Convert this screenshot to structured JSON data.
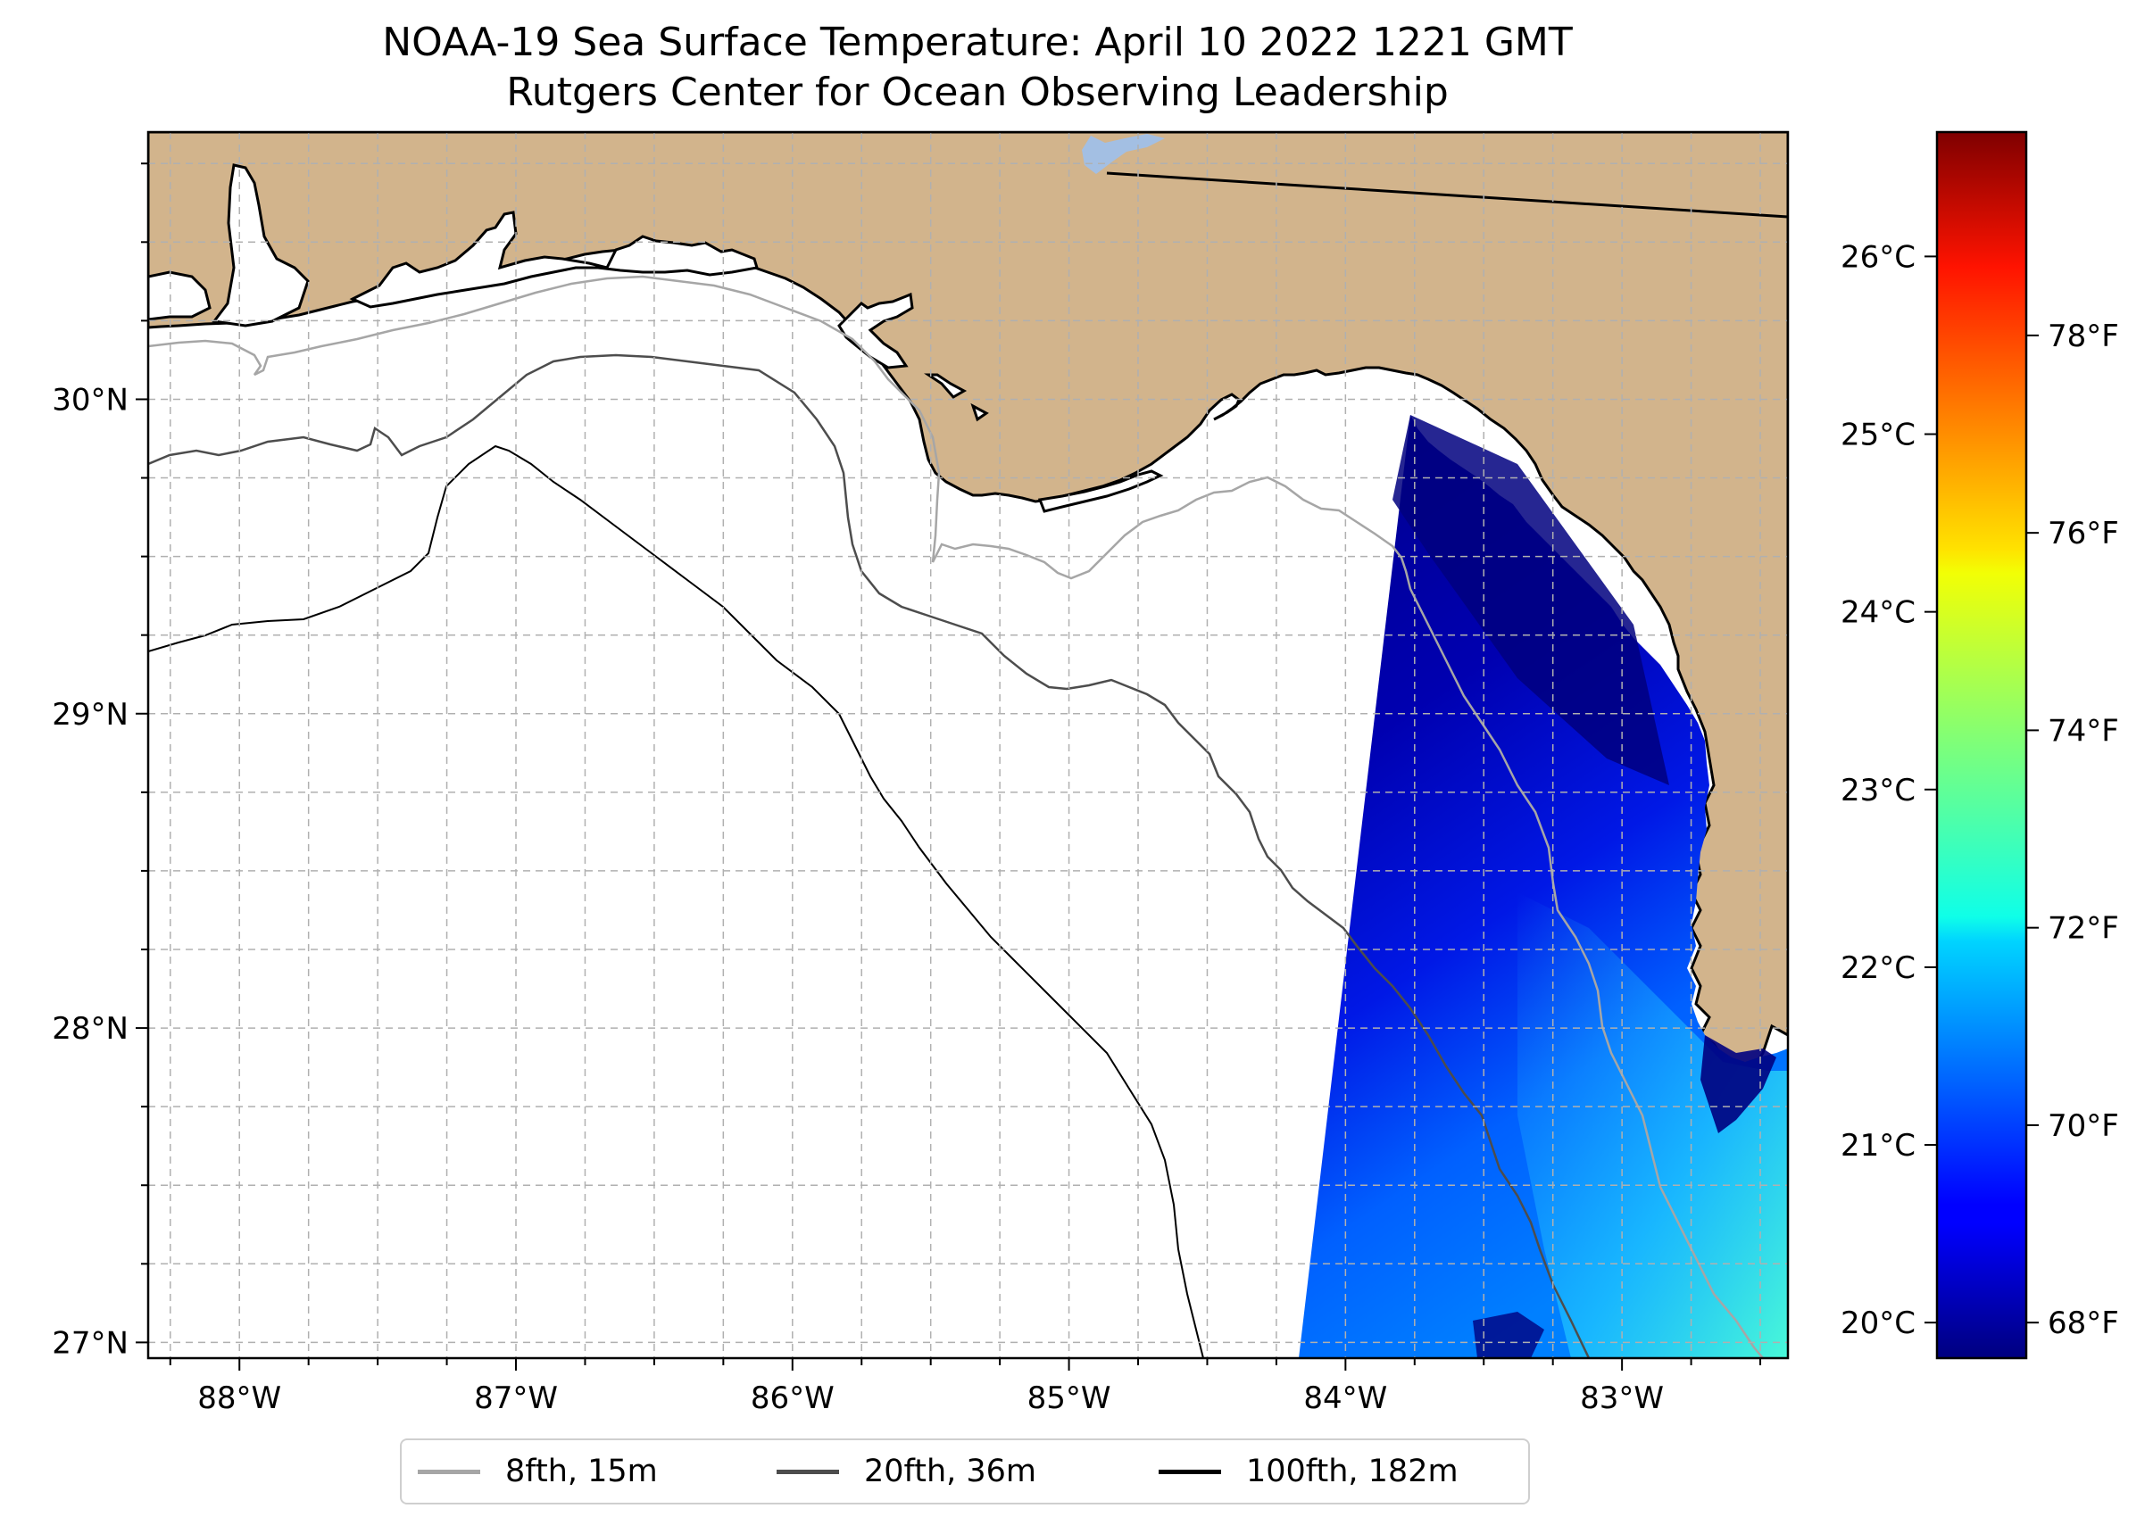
{
  "title": {
    "line1": "NOAA-19 Sea Surface Temperature: April 10 2022 1221 GMT",
    "line2": "Rutgers Center for Ocean Observing Leadership"
  },
  "map": {
    "lon_range": [
      -88.33,
      -82.4
    ],
    "lat_range": [
      26.95,
      30.85
    ],
    "land_color": "#d2b48c",
    "no_data_color": "#ffffff",
    "gridlines": true,
    "x_ticks": [
      {
        "value": -88,
        "label": "88°W"
      },
      {
        "value": -87,
        "label": "87°W"
      },
      {
        "value": -86,
        "label": "86°W"
      },
      {
        "value": -85,
        "label": "85°W"
      },
      {
        "value": -84,
        "label": "84°W"
      },
      {
        "value": -83,
        "label": "83°W"
      }
    ],
    "y_ticks": [
      {
        "value": 27,
        "label": "27°N"
      },
      {
        "value": 28,
        "label": "28°N"
      },
      {
        "value": 29,
        "label": "29°N"
      },
      {
        "value": 30,
        "label": "30°N"
      }
    ]
  },
  "colorbar": {
    "colormap": "jet",
    "celsius_range": [
      19.8,
      26.7
    ],
    "celsius_ticks": [
      {
        "value": 20,
        "label": "20°C"
      },
      {
        "value": 21,
        "label": "21°C"
      },
      {
        "value": 22,
        "label": "22°C"
      },
      {
        "value": 23,
        "label": "23°C"
      },
      {
        "value": 24,
        "label": "24°C"
      },
      {
        "value": 25,
        "label": "25°C"
      },
      {
        "value": 26,
        "label": "26°C"
      }
    ],
    "fahrenheit_ticks": [
      {
        "value": 68,
        "label": "68°F"
      },
      {
        "value": 70,
        "label": "70°F"
      },
      {
        "value": 72,
        "label": "72°F"
      },
      {
        "value": 74,
        "label": "74°F"
      },
      {
        "value": 76,
        "label": "76°F"
      },
      {
        "value": 78,
        "label": "78°F"
      }
    ]
  },
  "legend": {
    "placement": "bottom-center",
    "items": [
      {
        "label": "8fth, 15m",
        "color": "#a6a6a6"
      },
      {
        "label": "20fth, 36m",
        "color": "#4d4d4d"
      },
      {
        "label": "100fth, 182m",
        "color": "#000000"
      }
    ]
  }
}
